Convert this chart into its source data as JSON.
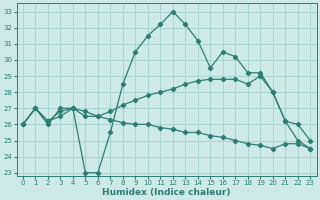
{
  "xlabel": "Humidex (Indice chaleur)",
  "bg_color": "#ceeae6",
  "grid_color": "#a8d4cf",
  "line_color": "#2d7d72",
  "xlim": [
    -0.5,
    23.5
  ],
  "ylim": [
    22.8,
    33.5
  ],
  "xticks": [
    0,
    1,
    2,
    3,
    4,
    5,
    6,
    7,
    8,
    9,
    10,
    11,
    12,
    13,
    14,
    15,
    16,
    17,
    18,
    19,
    20,
    21,
    22,
    23
  ],
  "yticks": [
    23,
    24,
    25,
    26,
    27,
    28,
    29,
    30,
    31,
    32,
    33
  ],
  "line1_y": [
    26.0,
    27.0,
    26.0,
    27.0,
    27.0,
    23.0,
    23.0,
    25.5,
    28.5,
    30.5,
    31.5,
    32.2,
    33.0,
    32.2,
    31.2,
    29.5,
    30.5,
    30.2,
    29.2,
    29.2,
    28.0,
    26.2,
    25.0,
    24.5
  ],
  "line2_y": [
    26.0,
    27.0,
    26.2,
    26.8,
    27.0,
    26.5,
    26.5,
    26.8,
    27.2,
    27.5,
    27.8,
    28.0,
    28.2,
    28.5,
    28.7,
    28.8,
    28.8,
    28.8,
    28.5,
    29.0,
    28.0,
    26.2,
    26.0,
    25.0
  ],
  "line3_y": [
    26.0,
    27.0,
    26.2,
    26.5,
    27.0,
    26.8,
    26.5,
    26.3,
    26.1,
    26.0,
    26.0,
    25.8,
    25.7,
    25.5,
    25.5,
    25.3,
    25.2,
    25.0,
    24.8,
    24.7,
    24.5,
    24.8,
    24.8,
    24.5
  ]
}
